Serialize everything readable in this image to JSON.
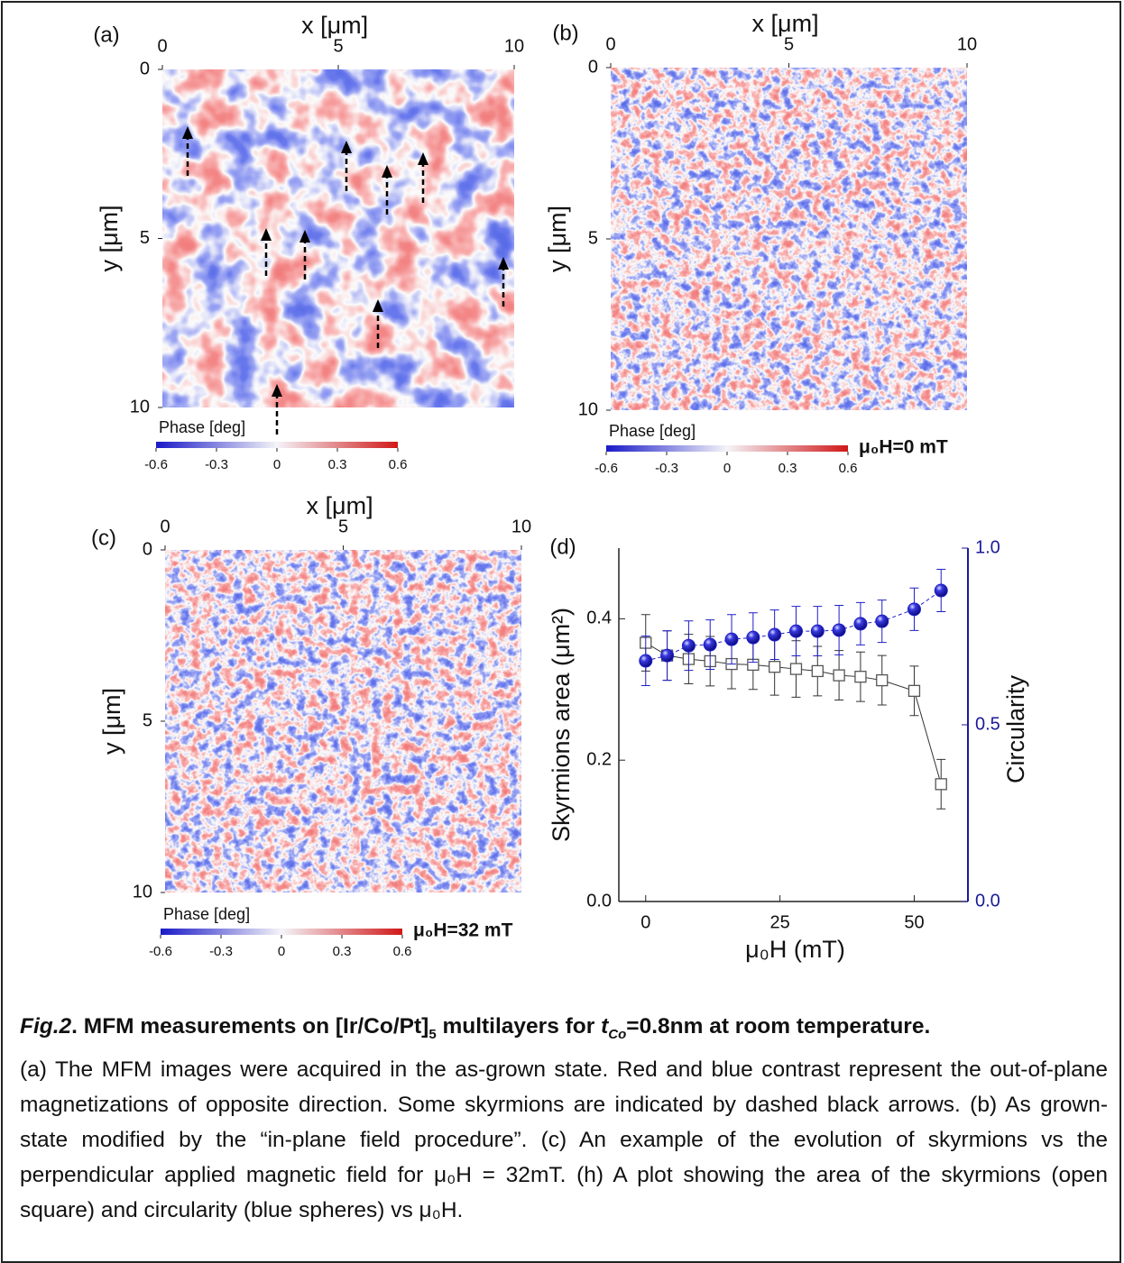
{
  "panels": [
    {
      "label": "(a)",
      "xlabel": "x [μm]",
      "ylabel": "y [μm]",
      "xticks": [
        0,
        5,
        10
      ],
      "yticks": [
        0,
        5,
        10
      ],
      "colorbar_label": "Phase [deg]",
      "colorbar_ticks": [
        -0.6,
        -0.3,
        0,
        0.3,
        0.6
      ]
    },
    {
      "label": "(b)",
      "xlabel": "x [μm]",
      "ylabel": "y [μm]",
      "xticks": [
        0,
        5,
        10
      ],
      "yticks": [
        0,
        5,
        10
      ],
      "colorbar_label": "Phase [deg]",
      "colorbar_ticks": [
        -0.6,
        -0.3,
        0,
        0.3,
        0.6
      ],
      "field": "μ₀H=0 mT"
    },
    {
      "label": "(c)",
      "xlabel": "x [μm]",
      "ylabel": "y [μm]",
      "xticks": [
        0,
        5,
        10
      ],
      "yticks": [
        0,
        5,
        10
      ],
      "colorbar_label": "Phase [deg]",
      "colorbar_ticks": [
        -0.6,
        -0.3,
        0,
        0.3,
        0.6
      ],
      "field": "μ₀H=32 mT"
    }
  ],
  "chart_data": {
    "type": "line",
    "label": "(d)",
    "x_label": "μ₀H (mT)",
    "y_label": "Skyrmions area (μm²)",
    "y2_label": "Circularity",
    "x": [
      0,
      4,
      8,
      12,
      16,
      20,
      24,
      28,
      32,
      36,
      40,
      44,
      50,
      55
    ],
    "xlim": [
      -5,
      60
    ],
    "xticks": [
      0,
      25,
      50
    ],
    "ylim": [
      0,
      0.5
    ],
    "yticks": [
      {
        "value": 0,
        "label": "0.0"
      },
      0.2,
      0.4
    ],
    "y2lim": [
      0,
      1
    ],
    "y2ticks": [
      {
        "value": 0,
        "label": "0.0"
      },
      0.5,
      {
        "value": 1,
        "label": "1.0"
      }
    ],
    "series": [
      {
        "color": "#555555",
        "marker": "square",
        "values": [
          0.366,
          0.348,
          0.343,
          0.34,
          0.336,
          0.335,
          0.332,
          0.329,
          0.326,
          0.32,
          0.318,
          0.313,
          0.298,
          0.166
        ],
        "errors": [
          0.04,
          0.035,
          0.035,
          0.035,
          0.035,
          0.035,
          0.04,
          0.04,
          0.035,
          0.035,
          0.035,
          0.035,
          0.035,
          0.035
        ]
      },
      {
        "color": "#1f1fc8",
        "marker": "circle",
        "axis": "y2",
        "values": [
          0.681,
          0.696,
          0.724,
          0.727,
          0.742,
          0.747,
          0.755,
          0.765,
          0.765,
          0.768,
          0.786,
          0.793,
          0.827,
          0.88
        ],
        "errors": [
          0.07,
          0.07,
          0.07,
          0.07,
          0.07,
          0.07,
          0.07,
          0.07,
          0.07,
          0.07,
          0.06,
          0.06,
          0.06,
          0.06
        ]
      }
    ]
  },
  "caption": {
    "fig_label": "Fig.2",
    "title_a": ". MFM measurements on [Ir/Co/Pt]",
    "title_sub": "5",
    "title_b": " multilayers for ",
    "title_t": "t",
    "title_co": "Co",
    "title_c": "=0.8nm at room temperature.",
    "body": "(a) The MFM images were acquired in the as-grown state. Red and blue contrast represent the out-of-plane magnetizations of opposite direction. Some skyrmions are indicated by dashed black arrows. (b) As grown-state modified by the “in-plane field procedure”. (c) An example of the evolution of skyrmions vs the perpendicular applied magnetic field for μ₀H = 32mT. (h) A plot showing the area of the skyrmions (open square) and circularity (blue spheres) vs μ₀H."
  }
}
